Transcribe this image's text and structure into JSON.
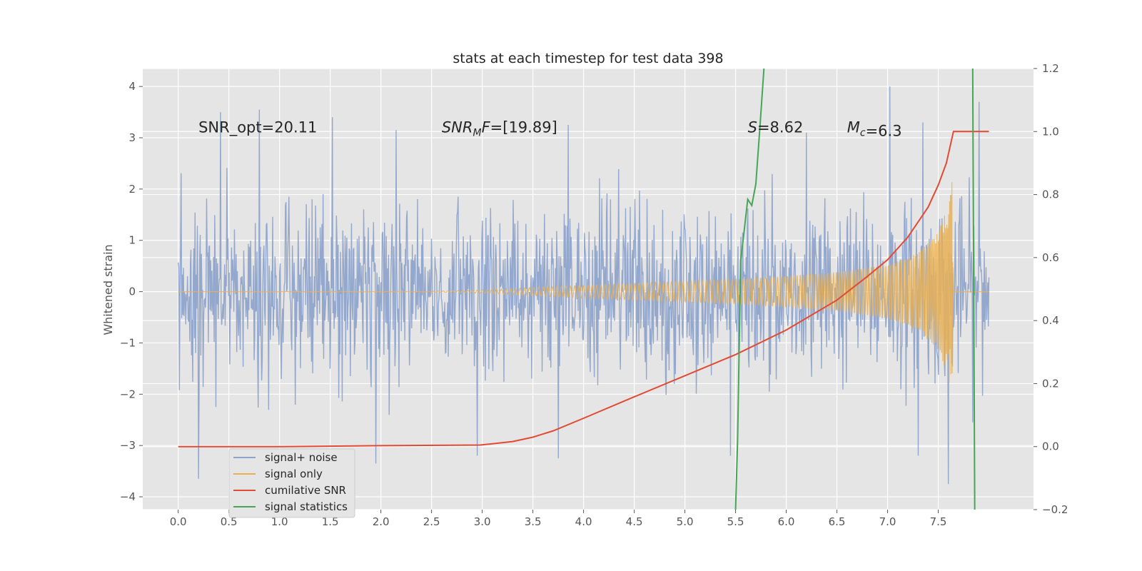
{
  "chart_data": {
    "type": "line",
    "title": "stats at each timestep for test data 398",
    "ylabel": "Whitened strain",
    "xlim": [
      -0.35,
      8.44
    ],
    "ylim": [
      -4.25,
      4.35
    ],
    "y2lim": [
      -0.2,
      1.2
    ],
    "x_ticks": [
      "0.0",
      "0.5",
      "1.0",
      "1.5",
      "2.0",
      "2.5",
      "3.0",
      "3.5",
      "4.0",
      "4.5",
      "5.0",
      "5.5",
      "6.0",
      "6.5",
      "7.0",
      "7.5"
    ],
    "y_ticks": [
      "4",
      "3",
      "2",
      "1",
      "0",
      "−1",
      "−2",
      "−3",
      "−4"
    ],
    "y2_ticks": [
      "1.2",
      "1.0",
      "0.8",
      "0.6",
      "0.4",
      "0.2",
      "0.0",
      "−0.2"
    ],
    "grid": true,
    "legend_position": "lower-left",
    "colors": {
      "noise": "#8fa4cb",
      "signal": "#e8b055",
      "cumulative_snr": "#e24a33",
      "statistic": "#47a558",
      "axes_bg": "#e5e5e5",
      "grid": "#ffffff"
    },
    "annotations": [
      {
        "text": "SNR_opt=20.11",
        "x": 0.2,
        "y": 3.2
      },
      {
        "text": "SNR_MF=[19.89]",
        "x": 2.6,
        "y": 3.2
      },
      {
        "text": "S=8.62",
        "x": 5.62,
        "y": 3.2
      },
      {
        "text": "M_c=6.3",
        "x": 6.6,
        "y": 3.2
      }
    ],
    "series": [
      {
        "name": "signal+ noise",
        "axis": "left",
        "x_range": [
          0.0,
          8.0
        ],
        "envelope_sigma": 0.85,
        "extreme_peaks": [
          [
            0.42,
            3.5
          ],
          [
            0.8,
            3.55
          ],
          [
            1.52,
            3.4
          ],
          [
            2.15,
            3.15
          ],
          [
            3.85,
            3.25
          ],
          [
            6.2,
            3.1
          ],
          [
            7.02,
            4.0
          ],
          [
            7.35,
            3.3
          ],
          [
            7.9,
            3.7
          ],
          [
            0.2,
            -3.65
          ],
          [
            1.95,
            -3.35
          ],
          [
            2.95,
            -3.2
          ],
          [
            3.75,
            -3.25
          ],
          [
            5.45,
            -3.2
          ],
          [
            7.3,
            -3.2
          ],
          [
            7.6,
            -3.75
          ]
        ]
      },
      {
        "name": "signal only",
        "axis": "left",
        "x_range": [
          0.0,
          8.0
        ],
        "amplitude_points": [
          [
            0.0,
            0.0
          ],
          [
            2.5,
            0.005
          ],
          [
            3.0,
            0.03
          ],
          [
            3.5,
            0.08
          ],
          [
            4.0,
            0.12
          ],
          [
            4.5,
            0.16
          ],
          [
            5.0,
            0.2
          ],
          [
            5.5,
            0.24
          ],
          [
            6.0,
            0.3
          ],
          [
            6.5,
            0.38
          ],
          [
            7.0,
            0.52
          ],
          [
            7.3,
            0.75
          ],
          [
            7.5,
            1.15
          ],
          [
            7.6,
            1.7
          ],
          [
            7.64,
            2.2
          ],
          [
            7.65,
            0.0
          ],
          [
            8.0,
            0.0
          ]
        ]
      },
      {
        "name": "cumilative SNR",
        "axis": "right",
        "x": [
          0.0,
          1.0,
          2.0,
          2.98,
          3.1,
          3.3,
          3.5,
          3.7,
          4.0,
          4.5,
          5.0,
          5.5,
          6.0,
          6.5,
          6.8,
          7.0,
          7.2,
          7.4,
          7.5,
          7.58,
          7.65,
          8.0
        ],
        "y": [
          0.0,
          0.0,
          0.003,
          0.005,
          0.009,
          0.016,
          0.03,
          0.05,
          0.09,
          0.158,
          0.225,
          0.292,
          0.37,
          0.465,
          0.54,
          0.593,
          0.665,
          0.76,
          0.83,
          0.9,
          1.0,
          1.0
        ]
      },
      {
        "name": "signal statistics",
        "axis": "left",
        "segments": [
          {
            "x": [
              5.5,
              5.52,
              5.55,
              5.58,
              5.62,
              5.66,
              5.7,
              5.74,
              5.78
            ],
            "y": [
              -4.25,
              -2.9,
              0.6,
              1.1,
              1.8,
              1.68,
              2.1,
              3.2,
              4.35
            ]
          },
          {
            "x": [
              7.84,
              7.86
            ],
            "y": [
              4.35,
              -4.25
            ]
          }
        ]
      }
    ]
  }
}
